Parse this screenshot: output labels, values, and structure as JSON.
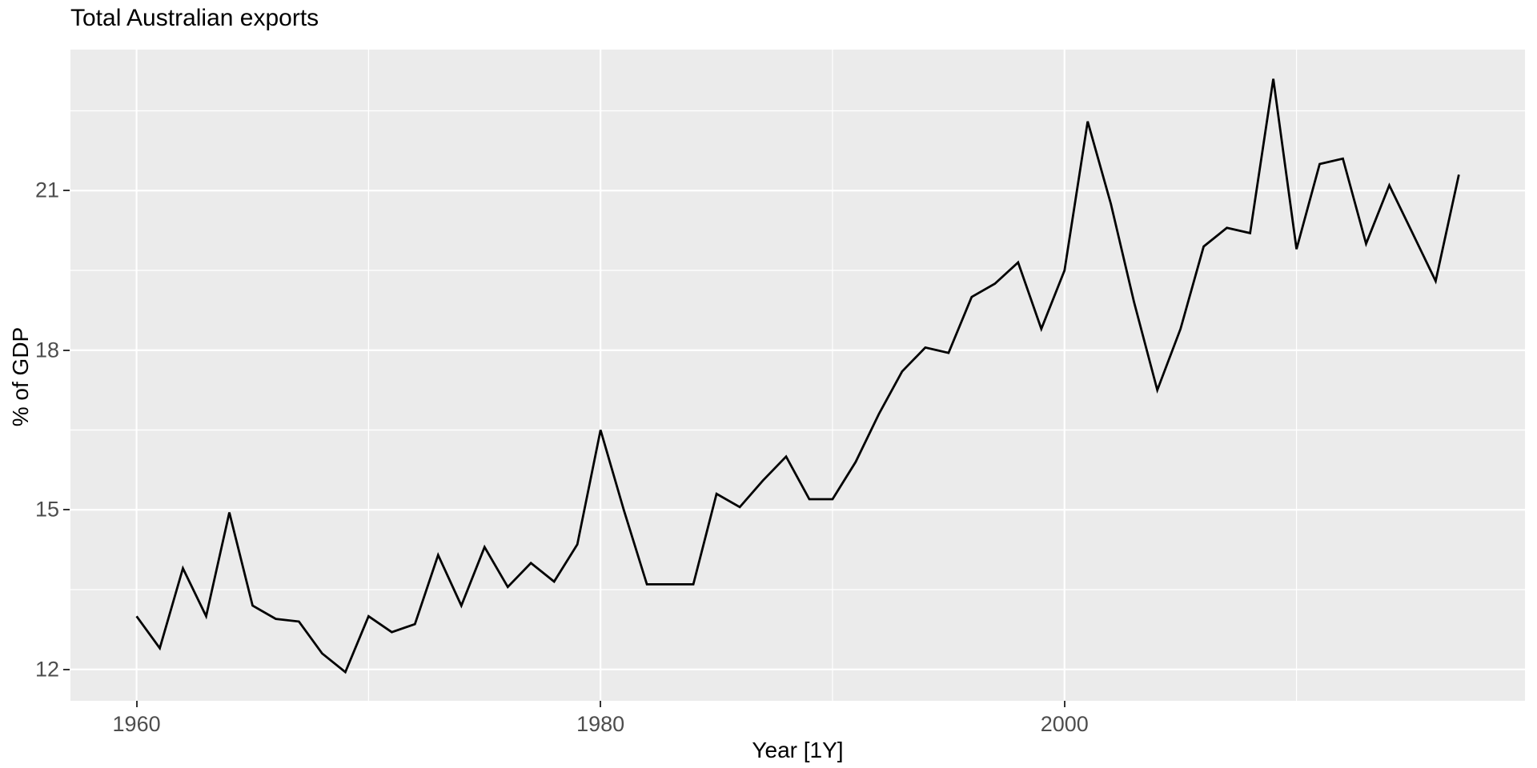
{
  "chart_title": "Total Australian exports",
  "chart_data": {
    "type": "line",
    "title": "Total Australian exports",
    "xlabel": "Year [1Y]",
    "ylabel": "% of GDP",
    "x": [
      1960,
      1961,
      1962,
      1963,
      1964,
      1965,
      1966,
      1967,
      1968,
      1969,
      1970,
      1971,
      1972,
      1973,
      1974,
      1975,
      1976,
      1977,
      1978,
      1979,
      1980,
      1981,
      1982,
      1983,
      1984,
      1985,
      1986,
      1987,
      1988,
      1989,
      1990,
      1991,
      1992,
      1993,
      1994,
      1995,
      1996,
      1997,
      1998,
      1999,
      2000,
      2001,
      2002,
      2003,
      2004,
      2005,
      2006,
      2007,
      2008,
      2009,
      2010,
      2011,
      2012,
      2013,
      2014,
      2015,
      2016,
      2017
    ],
    "values": [
      13.0,
      12.4,
      13.9,
      13.0,
      14.95,
      13.2,
      12.95,
      12.9,
      12.3,
      11.95,
      13.0,
      12.7,
      12.85,
      14.15,
      13.2,
      14.3,
      13.55,
      14.0,
      13.65,
      14.35,
      16.5,
      15.0,
      13.6,
      13.6,
      13.6,
      15.3,
      15.05,
      15.55,
      16.0,
      15.2,
      15.2,
      15.9,
      16.8,
      17.6,
      18.05,
      17.95,
      19.0,
      19.25,
      19.65,
      18.4,
      19.5,
      22.3,
      20.75,
      18.9,
      17.25,
      18.4,
      19.95,
      20.3,
      20.2,
      23.1,
      19.9,
      21.5,
      21.6,
      20.0,
      21.1,
      20.2,
      19.3,
      21.3
    ],
    "xlim": [
      1957.15,
      2019.85
    ],
    "ylim": [
      11.41,
      23.65
    ],
    "x_major_ticks": [
      1960,
      1980,
      2000
    ],
    "x_minor_ticks": [
      1970,
      1990,
      2010
    ],
    "y_major_ticks": [
      12,
      15,
      18,
      21
    ],
    "y_minor_ticks": [
      13.5,
      16.5,
      19.5,
      22.5
    ],
    "grid": true,
    "legend": "none",
    "colors": {
      "panel_bg": "#EBEBEB",
      "grid_major": "#FFFFFF",
      "grid_minor": "#FFFFFF",
      "line": "#000000",
      "tick_label": "#4D4D4D",
      "tick_mark": "#333333",
      "title": "#000000"
    }
  }
}
